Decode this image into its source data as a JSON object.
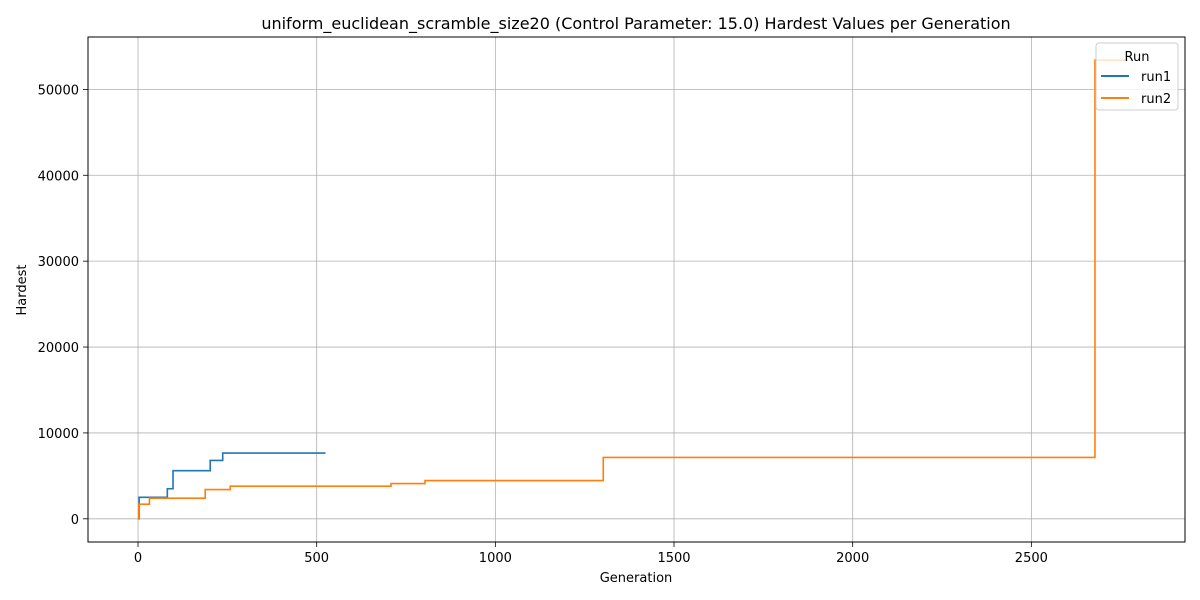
{
  "chart_data": {
    "type": "line",
    "title": "uniform_euclidean_scramble_size20 (Control Parameter: 15.0) Hardest Values per Generation",
    "xlabel": "Generation",
    "ylabel": "Hardest",
    "xlim": [
      -140,
      2930
    ],
    "ylim": [
      -2700,
      56100
    ],
    "x_ticks": [
      0,
      500,
      1000,
      1500,
      2000,
      2500
    ],
    "x_tick_labels": [
      "0",
      "500",
      "1000",
      "1500",
      "2000",
      "2500"
    ],
    "y_ticks": [
      0,
      10000,
      20000,
      30000,
      40000,
      50000
    ],
    "y_tick_labels": [
      "0",
      "10000",
      "20000",
      "30000",
      "40000",
      "50000"
    ],
    "grid": true,
    "legend": {
      "title": "Run",
      "placement": "top-right"
    },
    "step": "post",
    "series": [
      {
        "name": "run1",
        "color": "#1f77b4",
        "points": [
          [
            0,
            0
          ],
          [
            3,
            2500
          ],
          [
            80,
            2500
          ],
          [
            82,
            3500
          ],
          [
            95,
            3500
          ],
          [
            98,
            5600
          ],
          [
            200,
            5600
          ],
          [
            202,
            6800
          ],
          [
            235,
            6800
          ],
          [
            237,
            7650
          ],
          [
            525,
            7650
          ]
        ]
      },
      {
        "name": "run2",
        "color": "#ff7f0e",
        "points": [
          [
            0,
            0
          ],
          [
            2,
            1700
          ],
          [
            30,
            1700
          ],
          [
            32,
            2400
          ],
          [
            185,
            2400
          ],
          [
            188,
            3400
          ],
          [
            255,
            3400
          ],
          [
            258,
            3800
          ],
          [
            705,
            3800
          ],
          [
            708,
            4100
          ],
          [
            800,
            4100
          ],
          [
            803,
            4450
          ],
          [
            1300,
            4450
          ],
          [
            1302,
            7150
          ],
          [
            2675,
            7150
          ],
          [
            2678,
            53400
          ],
          [
            2770,
            53400
          ]
        ]
      }
    ]
  }
}
